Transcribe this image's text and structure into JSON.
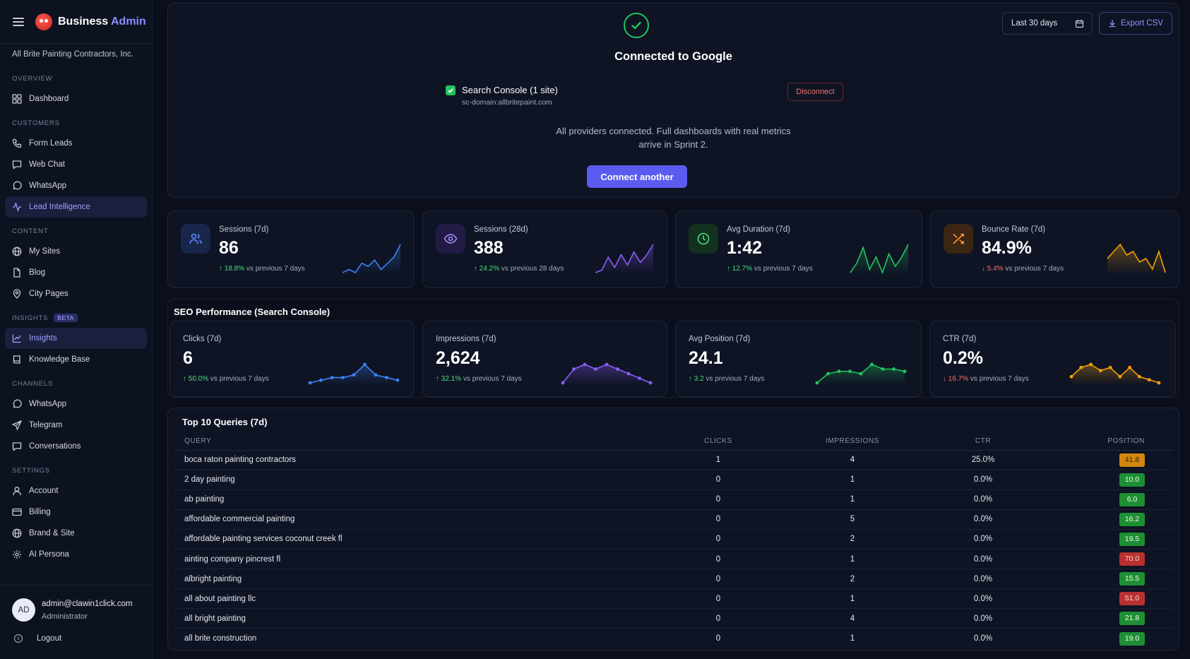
{
  "sidebar": {
    "brand_main": "Business",
    "brand_accent": "Admin",
    "org": "All Brite Painting Contractors, Inc.",
    "sections": {
      "overview": "OVERVIEW",
      "customers": "CUSTOMERS",
      "content": "CONTENT",
      "insights": "INSIGHTS",
      "insights_badge": "BETA",
      "channels": "CHANNELS",
      "settings": "SETTINGS"
    },
    "items": {
      "dashboard": "Dashboard",
      "form_leads": "Form Leads",
      "web_chat": "Web Chat",
      "whatsapp": "WhatsApp",
      "lead_intelligence": "Lead Intelligence",
      "my_sites": "My Sites",
      "blog": "Blog",
      "city_pages": "City Pages",
      "insights": "Insights",
      "knowledge_base": "Knowledge Base",
      "channel_whatsapp": "WhatsApp",
      "telegram": "Telegram",
      "conversations": "Conversations",
      "account": "Account",
      "billing": "Billing",
      "brand_site": "Brand & Site",
      "ai_persona": "AI Persona"
    },
    "user": {
      "initials": "AD",
      "email": "admin@clawin1click.com",
      "role": "Administrator",
      "logout": "Logout"
    }
  },
  "toolbar": {
    "date_range": "Last 30 days",
    "export": "Export CSV"
  },
  "connect": {
    "title": "Connected to Google",
    "provider": "Search Console (1 site)",
    "domain": "sc-domain:allbritepaint.com",
    "disconnect": "Disconnect",
    "note_line1": "All providers connected. Full dashboards with real metrics",
    "note_line2": "arrive in Sprint 2.",
    "connect_another": "Connect another"
  },
  "stats": [
    {
      "label": "Sessions (7d)",
      "value": "86",
      "change": "18.8%",
      "direction": "up",
      "suffix": "vs previous 7 days",
      "color": "#3b82f6",
      "icon": "users-icon",
      "spark": [
        3,
        4,
        3,
        6,
        5,
        7,
        4,
        6,
        8,
        12
      ]
    },
    {
      "label": "Sessions (28d)",
      "value": "388",
      "change": "24.2%",
      "direction": "up",
      "suffix": "vs previous 28 days",
      "color": "#8b5cf6",
      "icon": "eye-icon",
      "spark": [
        2,
        3,
        8,
        4,
        9,
        5,
        10,
        6,
        9,
        13
      ]
    },
    {
      "label": "Avg Duration (7d)",
      "value": "1:42",
      "change": "12.7%",
      "direction": "up",
      "suffix": "vs previous 7 days",
      "color": "#22c55e",
      "icon": "clock-icon",
      "spark": [
        4,
        7,
        12,
        5,
        9,
        4,
        10,
        6,
        9,
        13
      ]
    },
    {
      "label": "Bounce Rate (7d)",
      "value": "84.9%",
      "change": "5.4%",
      "direction": "down",
      "suffix": "vs previous 7 days",
      "color": "#f59e0b",
      "icon": "shuffle-icon",
      "spark": [
        7,
        9,
        11,
        8,
        9,
        6,
        7,
        4,
        9,
        3
      ]
    }
  ],
  "seo": {
    "title": "SEO Performance (Search Console)",
    "cards": [
      {
        "label": "Clicks (7d)",
        "value": "6",
        "change": "50.0%",
        "direction": "up",
        "suffix": "vs previous 7 days",
        "color": "#3b82f6",
        "spark": [
          1,
          2,
          3,
          3,
          4,
          8,
          4,
          3,
          2
        ]
      },
      {
        "label": "Impressions (7d)",
        "value": "2,624",
        "change": "32.1%",
        "direction": "up",
        "suffix": "vs previous 7 days",
        "color": "#8b5cf6",
        "spark": [
          2,
          5,
          6,
          5,
          6,
          5,
          4,
          3,
          2
        ]
      },
      {
        "label": "Avg Position (7d)",
        "value": "24.1",
        "change": "3.2",
        "direction": "up",
        "suffix": "vs previous 7 days",
        "color": "#22c55e",
        "spark": [
          1,
          5,
          6,
          6,
          5,
          9,
          7,
          7,
          6
        ]
      },
      {
        "label": "CTR (7d)",
        "value": "0.2%",
        "change": "16.7%",
        "direction": "down",
        "suffix": "vs previous 7 days",
        "color": "#f59e0b",
        "spark": [
          4,
          7,
          8,
          6,
          7,
          4,
          7,
          4,
          3,
          2
        ]
      }
    ]
  },
  "queries": {
    "title": "Top 10 Queries (7d)",
    "headers": {
      "query": "QUERY",
      "clicks": "CLICKS",
      "impressions": "IMPRESSIONS",
      "ctr": "CTR",
      "position": "POSITION"
    },
    "rows": [
      {
        "query": "boca raton painting contractors",
        "clicks": "1",
        "impressions": "4",
        "ctr": "25.0%",
        "position": "41.8",
        "tone": "amber"
      },
      {
        "query": "2 day painting",
        "clicks": "0",
        "impressions": "1",
        "ctr": "0.0%",
        "position": "10.0",
        "tone": "green"
      },
      {
        "query": "ab painting",
        "clicks": "0",
        "impressions": "1",
        "ctr": "0.0%",
        "position": "6.0",
        "tone": "green"
      },
      {
        "query": "affordable commercial painting",
        "clicks": "0",
        "impressions": "5",
        "ctr": "0.0%",
        "position": "16.2",
        "tone": "green"
      },
      {
        "query": "affordable painting services coconut creek fl",
        "clicks": "0",
        "impressions": "2",
        "ctr": "0.0%",
        "position": "19.5",
        "tone": "green"
      },
      {
        "query": "ainting company pincrest fl",
        "clicks": "0",
        "impressions": "1",
        "ctr": "0.0%",
        "position": "70.0",
        "tone": "red"
      },
      {
        "query": "albright painting",
        "clicks": "0",
        "impressions": "2",
        "ctr": "0.0%",
        "position": "15.5",
        "tone": "green"
      },
      {
        "query": "all about painting llc",
        "clicks": "0",
        "impressions": "1",
        "ctr": "0.0%",
        "position": "51.0",
        "tone": "red"
      },
      {
        "query": "all bright painting",
        "clicks": "0",
        "impressions": "4",
        "ctr": "0.0%",
        "position": "21.8",
        "tone": "green"
      },
      {
        "query": "all brite construction",
        "clicks": "0",
        "impressions": "1",
        "ctr": "0.0%",
        "position": "19.0",
        "tone": "green"
      }
    ]
  }
}
